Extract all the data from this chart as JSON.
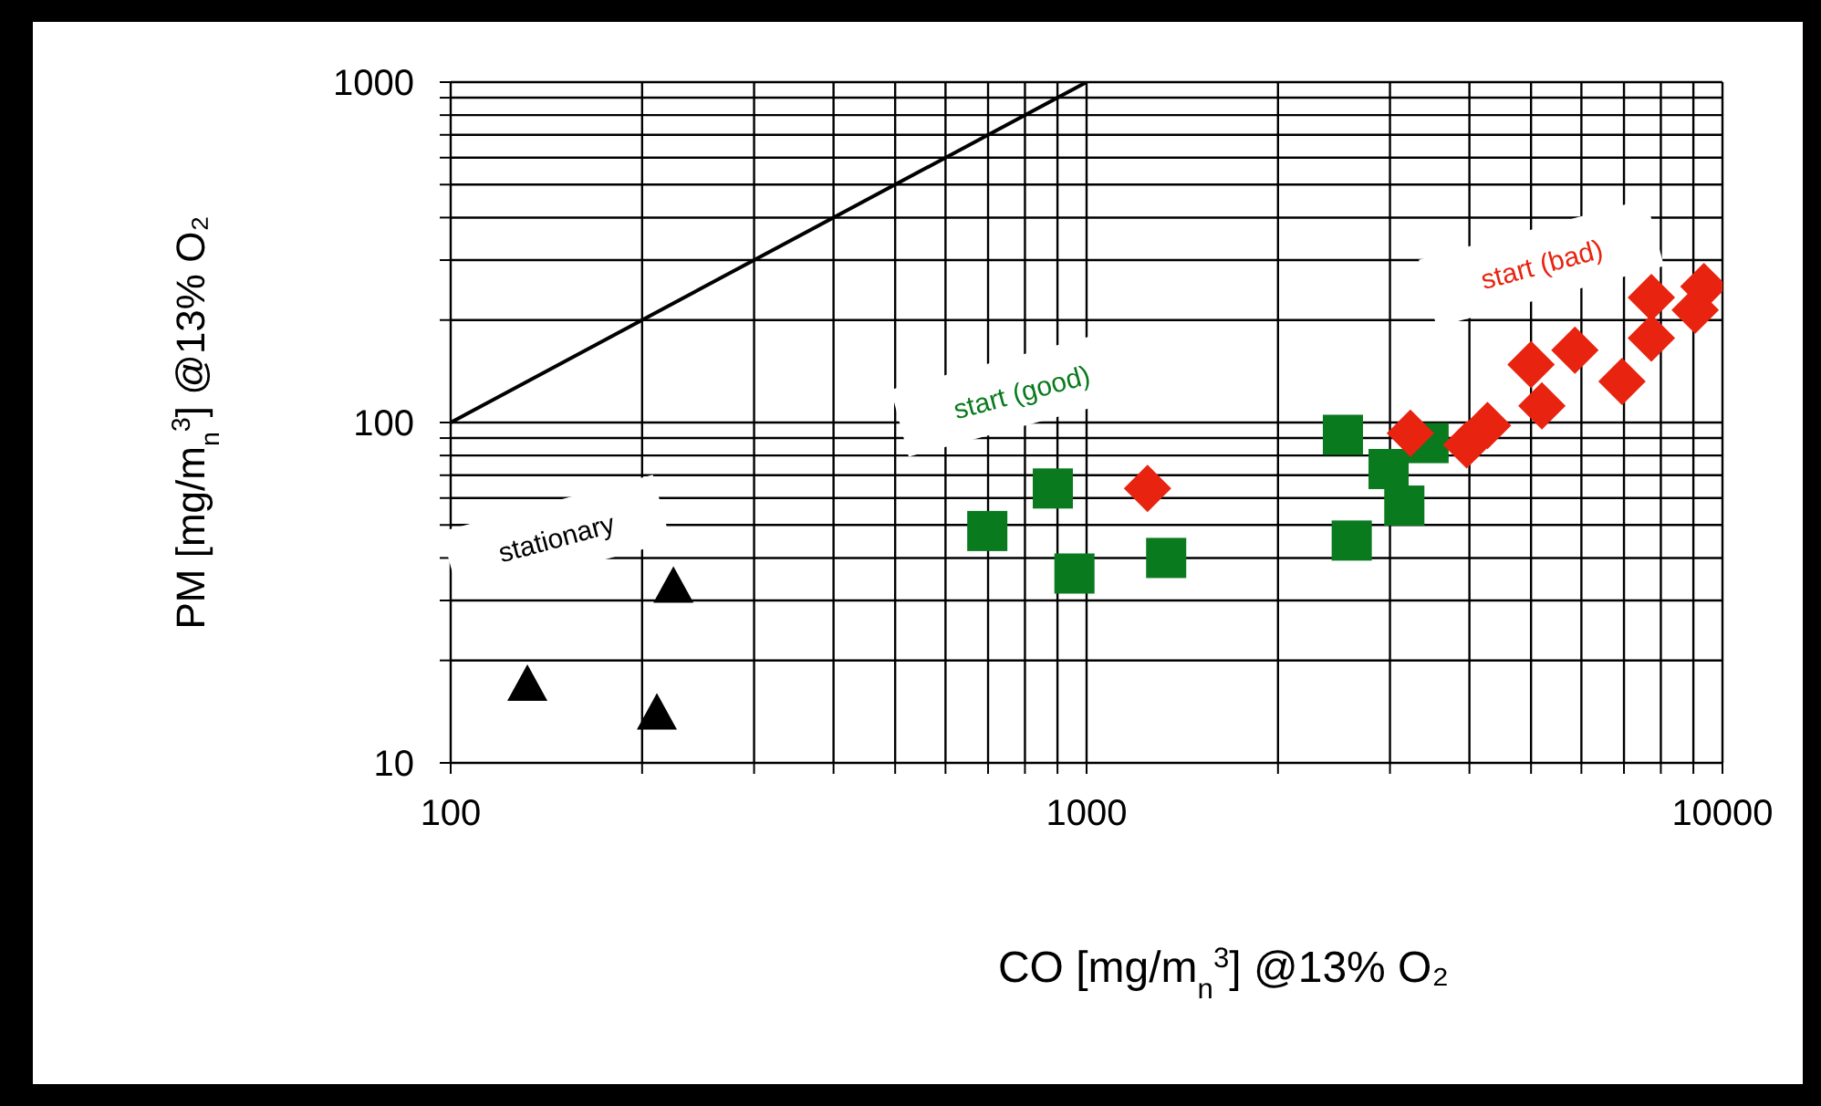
{
  "chart_data": {
    "type": "scatter",
    "xlabel": "CO [mg/m$_{n}$$^{3}$] @13% O₂",
    "ylabel": "PM [mg/m$_{n}$$^{3}$] @13% O₂",
    "log": "xy",
    "grid": true,
    "xlim": [
      100,
      10000
    ],
    "ylim": [
      10,
      1000
    ],
    "xticks": [
      100,
      {
        "value": 200,
        "label": null
      },
      {
        "value": 300,
        "label": null
      },
      {
        "value": 400,
        "label": null
      },
      {
        "value": 500,
        "label": null
      },
      {
        "value": 600,
        "label": null
      },
      {
        "value": 700,
        "label": null
      },
      {
        "value": 800,
        "label": null
      },
      {
        "value": 900,
        "label": null
      },
      1000,
      {
        "value": 2000,
        "label": null
      },
      {
        "value": 3000,
        "label": null
      },
      {
        "value": 4000,
        "label": null
      },
      {
        "value": 5000,
        "label": null
      },
      {
        "value": 6000,
        "label": null
      },
      {
        "value": 7000,
        "label": null
      },
      {
        "value": 8000,
        "label": null
      },
      {
        "value": 9000,
        "label": null
      },
      10000
    ],
    "yticks": [
      10,
      {
        "value": 20,
        "label": null
      },
      {
        "value": 30,
        "label": null
      },
      {
        "value": 40,
        "label": null
      },
      {
        "value": 50,
        "label": null
      },
      {
        "value": 60,
        "label": null
      },
      {
        "value": 70,
        "label": null
      },
      {
        "value": 80,
        "label": null
      },
      {
        "value": 90,
        "label": null
      },
      100,
      {
        "value": 200,
        "label": null
      },
      {
        "value": 300,
        "label": null
      },
      {
        "value": 400,
        "label": null
      },
      {
        "value": 500,
        "label": null
      },
      {
        "value": 600,
        "label": null
      },
      {
        "value": 700,
        "label": null
      },
      {
        "value": 800,
        "label": null
      },
      {
        "value": 900,
        "label": null
      },
      1000
    ],
    "series": [
      {
        "marker": "triangle",
        "color": "#000000",
        "x": [
          132,
          211,
          224
        ],
        "values": [
          17,
          14,
          33
        ]
      },
      {
        "marker": "square",
        "color": "#0a7a1e",
        "x": [
          698,
          885,
          957,
          1334,
          2530,
          2612,
          2985,
          3160,
          3450
        ],
        "values": [
          48,
          64,
          36,
          40,
          92,
          45,
          73,
          57,
          87
        ]
      },
      {
        "marker": "diamond",
        "color": "#e8230f",
        "x": [
          1247,
          3230,
          3960,
          4270,
          5000,
          5200,
          5860,
          6950,
          7730,
          7730,
          9060,
          9350
        ],
        "values": [
          64,
          93,
          86,
          98,
          148,
          112,
          163,
          132,
          177,
          233,
          214,
          251
        ]
      },
      {
        "type": "line",
        "marker": "none",
        "color": "#000000",
        "x": [
          100,
          1000
        ],
        "values": [
          100,
          1000
        ]
      }
    ],
    "annotations": [
      "stationary",
      "start (good)",
      "start (bad)"
    ]
  }
}
